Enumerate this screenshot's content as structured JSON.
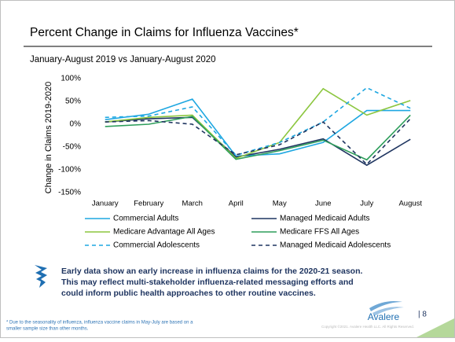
{
  "title": "Percent Change in Claims for Influenza Vaccines*",
  "subtitle": "January-August 2019 vs January-August 2020",
  "chart_data": {
    "type": "line",
    "y_label": "Change in Claims 2019-2020",
    "categories": [
      "January",
      "February",
      "March",
      "April",
      "May",
      "June",
      "July",
      "August"
    ],
    "ylim": [
      -150,
      100
    ],
    "yticks": [
      {
        "value": 100,
        "label": "100%"
      },
      {
        "value": 50,
        "label": "50%"
      },
      {
        "value": 0,
        "label": "0%"
      },
      {
        "value": -50,
        "label": "-50%"
      },
      {
        "value": -100,
        "label": "-100%"
      },
      {
        "value": -150,
        "label": "-150%"
      }
    ],
    "series": [
      {
        "name": "Commercial Adults",
        "color": "#1ea7e1",
        "dashed": false,
        "values": [
          10,
          22,
          55,
          -70,
          -65,
          -40,
          30,
          30
        ]
      },
      {
        "name": "Managed Medicaid Adults",
        "color": "#1f3560",
        "dashed": false,
        "values": [
          5,
          12,
          15,
          -72,
          -55,
          -32,
          -90,
          -33
        ]
      },
      {
        "name": "Medicare Advantage All Ages",
        "color": "#8cc63f",
        "dashed": false,
        "values": [
          5,
          15,
          20,
          -75,
          -40,
          78,
          20,
          52
        ]
      },
      {
        "name": "Medicare FFS All Ages",
        "color": "#2e9e5b",
        "dashed": false,
        "values": [
          -5,
          0,
          17,
          -77,
          -58,
          -35,
          -78,
          20
        ]
      },
      {
        "name": "Commercial Adolescents",
        "color": "#1ea7e1",
        "dashed": true,
        "values": [
          15,
          18,
          38,
          -68,
          -40,
          5,
          80,
          35
        ]
      },
      {
        "name": "Managed Medicaid Adolescents",
        "color": "#1f3560",
        "dashed": true,
        "values": [
          5,
          8,
          0,
          -67,
          -45,
          5,
          -88,
          12
        ]
      }
    ]
  },
  "callout": [
    "Early data show an early increase in influenza claims for the 2020-21 season.",
    "This may reflect multi-stakeholder influenza-related messaging efforts and",
    "could inform public health approaches to other routine vaccines."
  ],
  "footnote": [
    "* Due to the seasonality of influenza, influenza vaccine claims in May-July are based on a",
    "smaller sample size than other months."
  ],
  "logo": "Avalere",
  "page_number": "| 8",
  "copyright": "Copyright ©2021. Avalere Health LLC. All Rights Reserved."
}
